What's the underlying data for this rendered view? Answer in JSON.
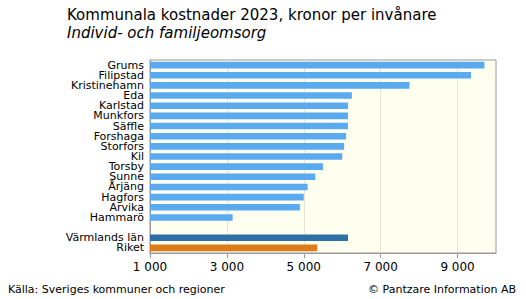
{
  "chart_data": {
    "type": "bar",
    "orientation": "horizontal",
    "title": "Kommunala kostnader 2023, kronor per invånare",
    "subtitle": "Individ- och familjeomsorg",
    "annotations": [
      "Källa: Sveriges kommuner och regioner",
      "© Pantzare Information AB"
    ],
    "categories": [
      "Grums",
      "Filipstad",
      "Kristinehamn",
      "Eda",
      "Karlstad",
      "Munkfors",
      "Säffle",
      "Forshaga",
      "Storfors",
      "Kil",
      "Torsby",
      "Sunne",
      "Årjäng",
      "Hagfors",
      "Arvika",
      "Hammarö",
      null,
      "Värmlands län",
      "Riket"
    ],
    "values": [
      9700,
      9350,
      7750,
      6250,
      6150,
      6150,
      6150,
      6100,
      6050,
      6000,
      5500,
      5300,
      5100,
      5000,
      4900,
      3150,
      null,
      6150,
      5350
    ],
    "colors": [
      "#5aaaf0",
      "#5aaaf0",
      "#5aaaf0",
      "#5aaaf0",
      "#5aaaf0",
      "#5aaaf0",
      "#5aaaf0",
      "#5aaaf0",
      "#5aaaf0",
      "#5aaaf0",
      "#5aaaf0",
      "#5aaaf0",
      "#5aaaf0",
      "#5aaaf0",
      "#5aaaf0",
      "#5aaaf0",
      "#5aaaf0",
      "#2e6fa8",
      "#e07b1a"
    ],
    "xlim": [
      1000,
      10000
    ],
    "xticks": [
      {
        "value": 1000,
        "label": "1 000"
      },
      {
        "value": 3000,
        "label": "3 000"
      },
      {
        "value": 5000,
        "label": "5 000"
      },
      {
        "value": 7000,
        "label": "7 000"
      },
      {
        "value": 9000,
        "label": "9 000"
      }
    ],
    "grid": true
  }
}
